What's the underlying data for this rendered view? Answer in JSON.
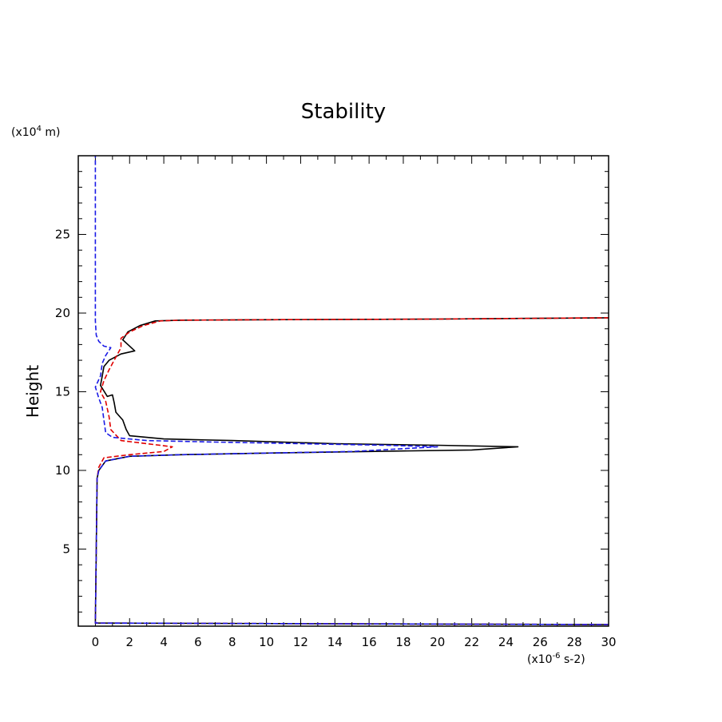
{
  "chart_data": {
    "type": "line",
    "title": "Stability",
    "ylabel": "Height",
    "y_unit": "(x10",
    "y_unit_exp": "4",
    "y_unit_suffix": " m)",
    "x_unit": "(x10",
    "x_unit_exp": "-6",
    "x_unit_suffix": " s-2)",
    "xlim": [
      -1,
      30
    ],
    "ylim": [
      0.1,
      30
    ],
    "x_ticks": [
      0,
      2,
      4,
      6,
      8,
      10,
      12,
      14,
      16,
      18,
      20,
      22,
      24,
      26,
      28,
      30
    ],
    "y_ticks": [
      5,
      10,
      15,
      20,
      25
    ],
    "series": [
      {
        "name": "black",
        "color": "#000000",
        "dash": false,
        "points": [
          [
            30,
            0.2
          ],
          [
            0,
            0.3
          ],
          [
            0.1,
            9.5
          ],
          [
            0.2,
            10.0
          ],
          [
            0.6,
            10.6
          ],
          [
            2,
            10.9
          ],
          [
            5,
            11.0
          ],
          [
            10,
            11.1
          ],
          [
            16,
            11.2
          ],
          [
            22,
            11.3
          ],
          [
            24.7,
            11.5
          ],
          [
            20,
            11.6
          ],
          [
            14,
            11.7
          ],
          [
            8,
            11.9
          ],
          [
            4,
            12.0
          ],
          [
            2,
            12.2
          ],
          [
            1.8,
            12.6
          ],
          [
            1.6,
            13.2
          ],
          [
            1.2,
            13.7
          ],
          [
            1.1,
            14.3
          ],
          [
            1.0,
            14.8
          ],
          [
            0.7,
            14.7
          ],
          [
            0.3,
            15.4
          ],
          [
            0.4,
            16.0
          ],
          [
            0.5,
            16.6
          ],
          [
            0.8,
            17.0
          ],
          [
            1.5,
            17.4
          ],
          [
            2.3,
            17.6
          ],
          [
            1.8,
            18.1
          ],
          [
            1.6,
            18.3
          ],
          [
            1.9,
            18.8
          ],
          [
            2.6,
            19.2
          ],
          [
            3.5,
            19.5
          ],
          [
            5,
            19.55
          ],
          [
            10,
            19.58
          ],
          [
            20,
            19.62
          ],
          [
            30,
            19.7
          ]
        ]
      },
      {
        "name": "red",
        "color": "#e00000",
        "dash": true,
        "points": [
          [
            30,
            0.2
          ],
          [
            0,
            0.3
          ],
          [
            0.1,
            9.5
          ],
          [
            0.2,
            10.2
          ],
          [
            0.5,
            10.8
          ],
          [
            2,
            11.0
          ],
          [
            4,
            11.2
          ],
          [
            4.5,
            11.5
          ],
          [
            3,
            11.7
          ],
          [
            1.5,
            11.9
          ],
          [
            0.9,
            12.6
          ],
          [
            0.8,
            13.4
          ],
          [
            0.6,
            14.4
          ],
          [
            0.3,
            15.0
          ],
          [
            0.5,
            15.7
          ],
          [
            0.8,
            16.4
          ],
          [
            1.2,
            17.2
          ],
          [
            1.5,
            17.8
          ],
          [
            1.5,
            18.4
          ],
          [
            2.0,
            18.8
          ],
          [
            2.8,
            19.2
          ],
          [
            3.8,
            19.5
          ],
          [
            5,
            19.55
          ],
          [
            10,
            19.58
          ],
          [
            20,
            19.62
          ],
          [
            30,
            19.7
          ]
        ]
      },
      {
        "name": "blue",
        "color": "#1a1ae6",
        "dash": true,
        "points": [
          [
            30,
            0.2
          ],
          [
            0,
            0.3
          ],
          [
            0.1,
            9.5
          ],
          [
            0.2,
            10.0
          ],
          [
            0.6,
            10.6
          ],
          [
            2,
            10.9
          ],
          [
            5,
            11.0
          ],
          [
            10,
            11.1
          ],
          [
            15,
            11.2
          ],
          [
            20,
            11.5
          ],
          [
            17,
            11.6
          ],
          [
            12,
            11.7
          ],
          [
            7,
            11.8
          ],
          [
            3,
            11.9
          ],
          [
            1,
            12.1
          ],
          [
            0.6,
            12.4
          ],
          [
            0.5,
            13.2
          ],
          [
            0.4,
            14.0
          ],
          [
            0.2,
            14.6
          ],
          [
            0.0,
            15.3
          ],
          [
            0.3,
            16.0
          ],
          [
            0.4,
            16.8
          ],
          [
            0.6,
            17.3
          ],
          [
            0.9,
            17.8
          ],
          [
            0.5,
            17.9
          ],
          [
            0.2,
            18.2
          ],
          [
            0.05,
            18.6
          ],
          [
            0.0,
            19.5
          ],
          [
            0.0,
            25
          ],
          [
            0.0,
            30
          ]
        ]
      }
    ]
  }
}
